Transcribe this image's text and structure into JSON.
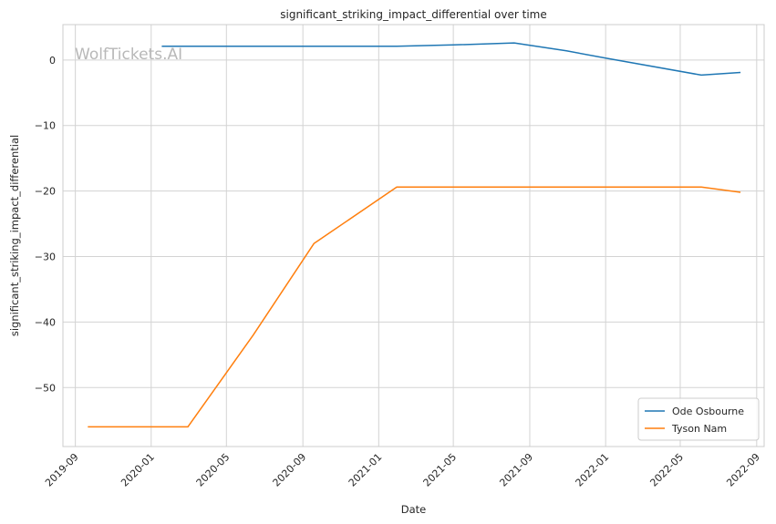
{
  "chart_data": {
    "type": "line",
    "title": "significant_striking_impact_differential over time",
    "xlabel": "Date",
    "ylabel": "significant_striking_impact_differential",
    "watermark": "WolfTickets.AI",
    "x_ticks": [
      "2019-09",
      "2020-01",
      "2020-05",
      "2020-09",
      "2021-01",
      "2021-05",
      "2021-09",
      "2022-01",
      "2022-05",
      "2022-09"
    ],
    "y_ticks": [
      0,
      -10,
      -20,
      -30,
      -40,
      -50
    ],
    "xlim": [
      "2019-08-12",
      "2022-09-13"
    ],
    "ylim": [
      -59,
      5.4
    ],
    "grid": true,
    "legend_position": "lower-right",
    "series": [
      {
        "name": "Ode Osbourne",
        "color": "#1f77b4",
        "points": [
          {
            "x": "2020-01-18",
            "y": 2.1
          },
          {
            "x": "2021-01-30",
            "y": 2.1
          },
          {
            "x": "2021-05-01",
            "y": 2.3
          },
          {
            "x": "2021-08-07",
            "y": 2.6
          },
          {
            "x": "2021-10-30",
            "y": 1.4
          },
          {
            "x": "2022-01-01",
            "y": 0.3
          },
          {
            "x": "2022-06-04",
            "y": -2.3
          },
          {
            "x": "2022-08-06",
            "y": -1.9
          }
        ]
      },
      {
        "name": "Tyson Nam",
        "color": "#ff7f0e",
        "points": [
          {
            "x": "2019-09-21",
            "y": -56.0
          },
          {
            "x": "2020-02-29",
            "y": -56.0
          },
          {
            "x": "2020-06-13",
            "y": -42.0
          },
          {
            "x": "2020-09-19",
            "y": -28.0
          },
          {
            "x": "2021-01-30",
            "y": -19.4
          },
          {
            "x": "2022-06-04",
            "y": -19.4
          },
          {
            "x": "2022-08-06",
            "y": -20.2
          }
        ]
      }
    ]
  }
}
